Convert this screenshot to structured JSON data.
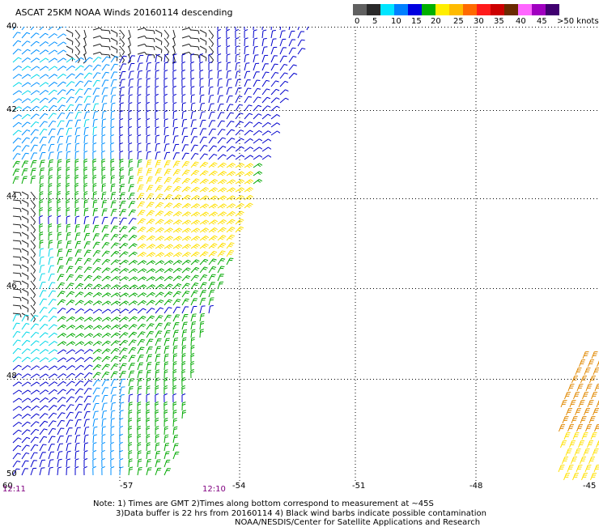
{
  "title": "ASCAT 25KM NOAA Winds 20160114 descending",
  "legend": {
    "labels": [
      "0",
      "5",
      "10",
      "15",
      "20",
      "25",
      "30",
      "35",
      "40",
      "45",
      ">50 knots"
    ],
    "colors": [
      "#606060",
      "#2a2a2a",
      "#00e5ff",
      "#0080ff",
      "#0000e0",
      "#00b000",
      "#ffee00",
      "#ffbb00",
      "#ff6a00",
      "#ff1a1a",
      "#cc0000",
      "#6a2a00",
      "#ff66ff",
      "#a000c0",
      "#400070"
    ]
  },
  "map": {
    "lat_labels": [
      "40",
      "42",
      "44",
      "46",
      "48",
      "50"
    ],
    "lon_labels": [
      "-57",
      "-54",
      "-51",
      "-48",
      "-45"
    ],
    "corner_lon": "60",
    "time_left": "12:11",
    "time_mid": "12:10",
    "barb_colors": {
      "black": "#222222",
      "cyan": "#00d8e8",
      "lightblue": "#0090ff",
      "blue": "#0000cc",
      "green": "#00a800",
      "yellow": "#ffe000",
      "orange": "#e08800"
    }
  },
  "notes": {
    "line1": "Note: 1) Times are GMT 2)Times along bottom correspond to measurement at ~45S",
    "line2": "3)Data buffer is 22 hrs from 20160114 4) Black wind barbs indicate possible contamination",
    "line3": "NOAA/NESDIS/Center for Satellite Applications and Research"
  }
}
